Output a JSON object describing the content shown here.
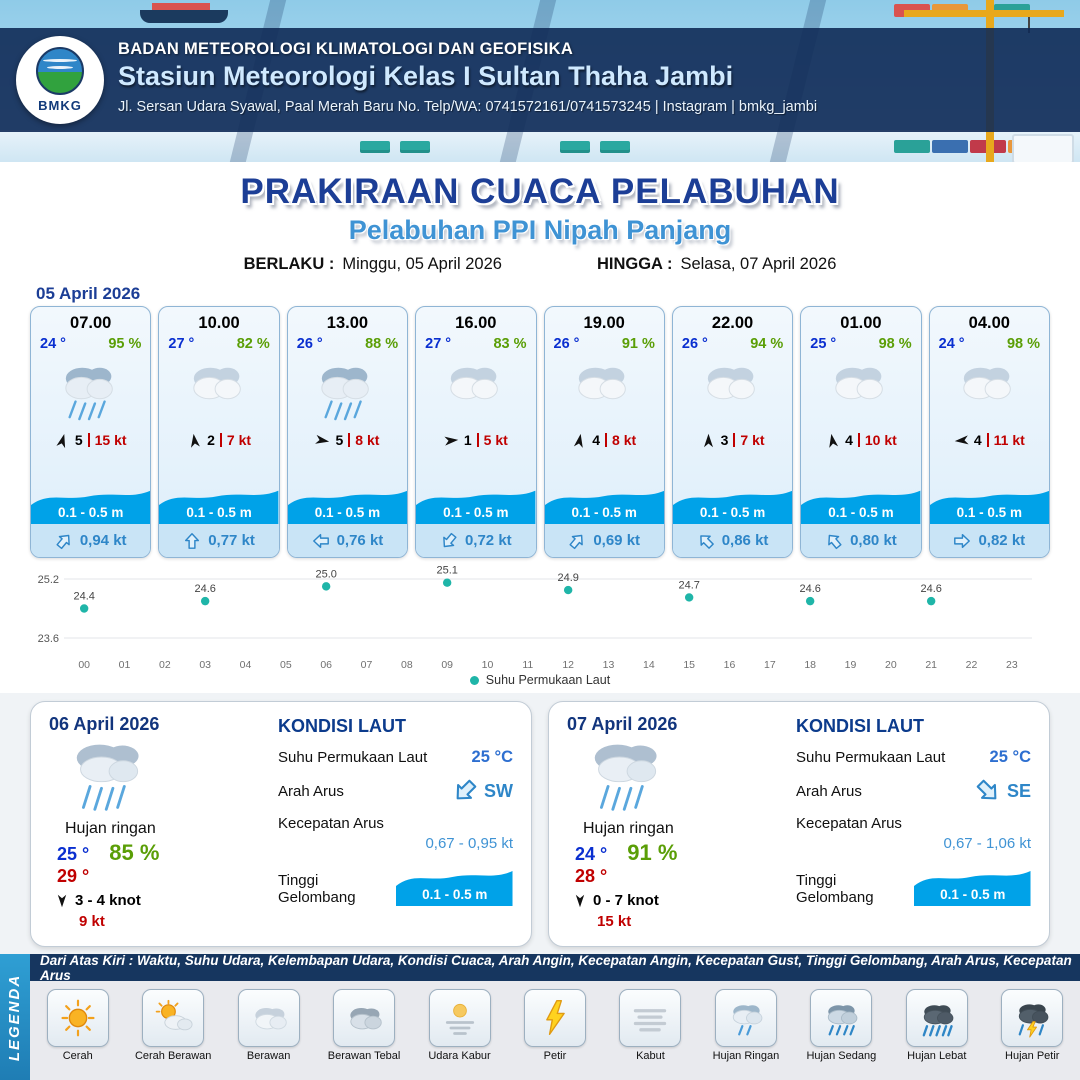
{
  "header": {
    "logo_text": "BMKG",
    "org": "BADAN METEOROLOGI KLIMATOLOGI DAN GEOFISIKA",
    "station": "Stasiun Meteorologi Kelas I Sultan Thaha Jambi",
    "address": "Jl. Sersan Udara Syawal, Paal Merah Baru No. Telp/WA: 0741572161/0741573245 | Instagram | bmkg_jambi"
  },
  "title": {
    "main": "PRAKIRAAN CUACA PELABUHAN",
    "subtitle": "Pelabuhan PPI Nipah Panjang",
    "berlaku_label": "BERLAKU :",
    "berlaku_value": "Minggu, 05 April 2026",
    "hingga_label": "HINGGA :",
    "hingga_value": "Selasa, 07 April 2026"
  },
  "forecast_date": "05 April 2026",
  "hourly": [
    {
      "time": "07.00",
      "temp": "24 °",
      "humidity": "95 %",
      "icon": "rain",
      "wind_deg": 15,
      "wind_val": "5",
      "wind_speed": "15 kt",
      "wave": "0.1 - 0.5 m",
      "cur_deg": 40,
      "current": "0,94 kt"
    },
    {
      "time": "10.00",
      "temp": "27 °",
      "humidity": "82 %",
      "icon": "cloudy",
      "wind_deg": -8,
      "wind_val": "2",
      "wind_speed": "7 kt",
      "wave": "0.1 - 0.5 m",
      "cur_deg": 0,
      "current": "0,77 kt"
    },
    {
      "time": "13.00",
      "temp": "26 °",
      "humidity": "88 %",
      "icon": "rain",
      "wind_deg": 100,
      "wind_val": "5",
      "wind_speed": "8 kt",
      "wave": "0.1 - 0.5 m",
      "cur_deg": -90,
      "current": "0,76 kt"
    },
    {
      "time": "16.00",
      "temp": "27 °",
      "humidity": "83 %",
      "icon": "cloudy",
      "wind_deg": 85,
      "wind_val": "1",
      "wind_speed": "5 kt",
      "wave": "0.1 - 0.5 m",
      "cur_deg": -140,
      "current": "0,72 kt"
    },
    {
      "time": "19.00",
      "temp": "26 °",
      "humidity": "91 %",
      "icon": "cloudy",
      "wind_deg": 10,
      "wind_val": "4",
      "wind_speed": "8 kt",
      "wave": "0.1 - 0.5 m",
      "cur_deg": 40,
      "current": "0,69 kt"
    },
    {
      "time": "22.00",
      "temp": "26 °",
      "humidity": "94 %",
      "icon": "cloudy",
      "wind_deg": 0,
      "wind_val": "3",
      "wind_speed": "7 kt",
      "wave": "0.1 - 0.5 m",
      "cur_deg": -45,
      "current": "0,86 kt"
    },
    {
      "time": "01.00",
      "temp": "25 °",
      "humidity": "98 %",
      "icon": "cloudy",
      "wind_deg": -10,
      "wind_val": "4",
      "wind_speed": "10 kt",
      "wave": "0.1 - 0.5 m",
      "cur_deg": -40,
      "current": "0,80 kt"
    },
    {
      "time": "04.00",
      "temp": "24 °",
      "humidity": "98 %",
      "icon": "cloudy",
      "wind_deg": -95,
      "wind_val": "4",
      "wind_speed": "11 kt",
      "wave": "0.1 - 0.5 m",
      "cur_deg": 90,
      "current": "0,82 kt"
    }
  ],
  "chart_data": {
    "type": "scatter",
    "series_name": "Suhu Permukaan Laut",
    "x": [
      0,
      3,
      6,
      9,
      12,
      15,
      18,
      21
    ],
    "values": [
      24.4,
      24.6,
      25.0,
      25.1,
      24.9,
      24.7,
      24.6,
      24.6
    ],
    "x_ticks": [
      "00",
      "01",
      "02",
      "03",
      "04",
      "05",
      "06",
      "07",
      "08",
      "09",
      "10",
      "11",
      "12",
      "13",
      "14",
      "15",
      "16",
      "17",
      "18",
      "19",
      "20",
      "21",
      "22",
      "23"
    ],
    "ylim": [
      23.6,
      25.2
    ],
    "point_color": "#1fb5a8",
    "grid": true,
    "legend_position": "bottom"
  },
  "sea_labels": {
    "heading": "KONDISI LAUT",
    "sst": "Suhu Permukaan Laut",
    "arah": "Arah Arus",
    "kecepatan": "Kecepatan Arus",
    "tinggi": "Tinggi Gelombang"
  },
  "daily": [
    {
      "date": "06 April 2026",
      "condition": "Hujan ringan",
      "temp_min": "25 °",
      "humidity": "85 %",
      "temp_max": "29 °",
      "wind": "3 - 4 knot",
      "gust": "9 kt",
      "sea": {
        "sst": "25 °C",
        "dir": "SW",
        "dir_deg": 225,
        "speed": "0,67 - 0,95 kt",
        "wave": "0.1 - 0.5 m"
      }
    },
    {
      "date": "07 April 2026",
      "condition": "Hujan ringan",
      "temp_min": "24 °",
      "humidity": "91 %",
      "temp_max": "28 °",
      "wind": "0 - 7 knot",
      "gust": "15 kt",
      "sea": {
        "sst": "25 °C",
        "dir": "SE",
        "dir_deg": 135,
        "speed": "0,67 - 1,06 kt",
        "wave": "0.1 - 0.5 m"
      }
    }
  ],
  "legend": {
    "side_label": "LEGENDA",
    "strip_text": "Dari Atas Kiri : Waktu, Suhu Udara, Kelembapan Udara, Kondisi Cuaca, Arah Angin, Kecepatan Angin, Kecepatan Gust, Tinggi Gelombang, Arah Arus, Kecepatan Arus",
    "items": [
      "Cerah",
      "Cerah Berawan",
      "Berawan",
      "Berawan Tebal",
      "Udara Kabur",
      "Petir",
      "Kabut",
      "Hujan Ringan",
      "Hujan Sedang",
      "Hujan Lebat",
      "Hujan Petir"
    ]
  }
}
